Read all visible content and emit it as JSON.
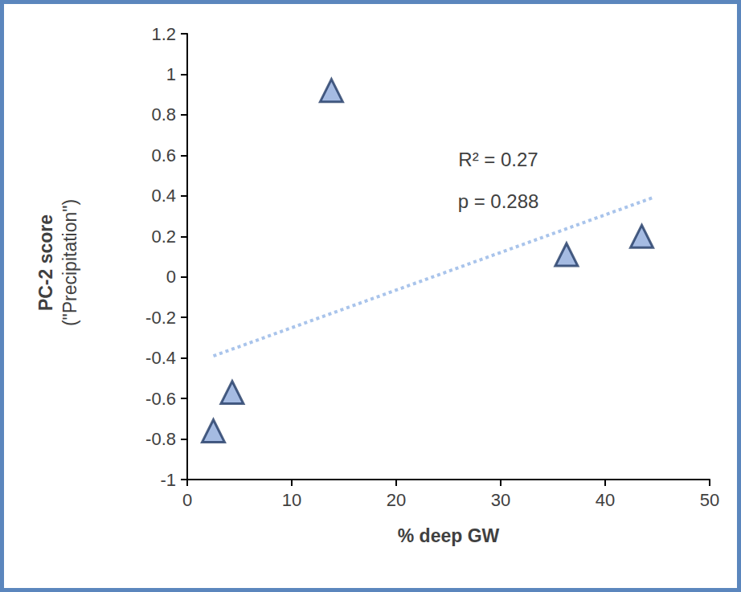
{
  "chart_data": {
    "type": "scatter",
    "x_label": "% deep GW",
    "y_label_lines": [
      "PC-2 score",
      "(\"Precipitation\")"
    ],
    "annotations": [
      "R² = 0.27",
      "p = 0.288"
    ],
    "x": [
      2.5,
      4.3,
      13.8,
      36.3,
      43.5
    ],
    "values": [
      -0.76,
      -0.57,
      0.92,
      0.11,
      0.2
    ],
    "color": "#8eaadb",
    "marker": "triangle",
    "trendline": {
      "x": [
        2.5,
        44.5
      ],
      "values": [
        -0.39,
        0.39
      ],
      "color": "#a9c4eb",
      "line_style": "dotted"
    },
    "xlim": [
      0,
      50
    ],
    "xticks": [
      0,
      10,
      20,
      30,
      40,
      50
    ],
    "ylim": [
      -1,
      1.2
    ],
    "yticks": [
      -1,
      -0.8,
      -0.6,
      -0.4,
      -0.2,
      0,
      0.2,
      0.4,
      0.6,
      0.8,
      1,
      1.2
    ],
    "grid": false
  }
}
